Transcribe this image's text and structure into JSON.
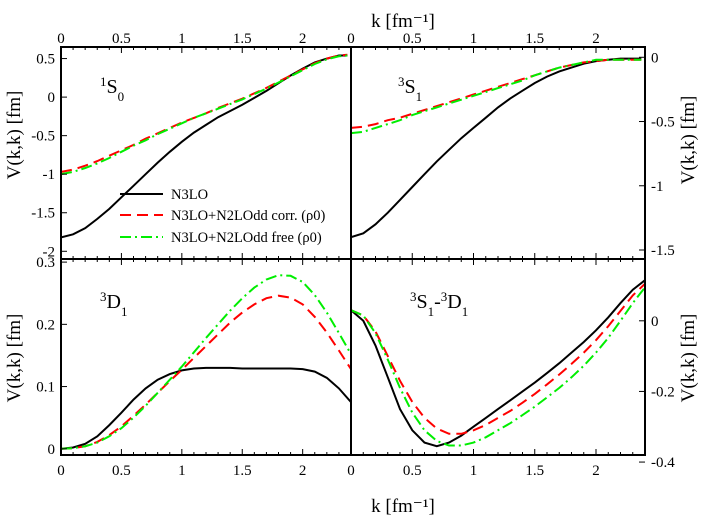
{
  "figure": {
    "xlabel_bottom": "k [fm⁻¹]",
    "xlabel_top": "k [fm⁻¹]",
    "ylabel_left_top": "V(k,k) [fm]",
    "ylabel_left_bottom": "V(k,k) [fm]",
    "ylabel_right_top": "V(k,k) [fm]",
    "ylabel_right_bottom": "V(k,k) [fm]",
    "legend": [
      "N3LO",
      "N3LO+N2LOdd corr. (ρ0)",
      "N3LO+N2LOdd free (ρ0)"
    ]
  },
  "colors": {
    "n3lo": "#000000",
    "corr": "#ff0000",
    "free": "#00ee00",
    "axis": "#000000"
  },
  "chart_data": [
    {
      "type": "line",
      "panel": "1S0",
      "label": "1S0",
      "xlim": [
        0,
        2.4
      ],
      "ylim": [
        -2.1,
        0.65
      ],
      "xticks": [
        0,
        0.5,
        1,
        1.5,
        2
      ],
      "yticks": [
        -2,
        -1.5,
        -1,
        -0.5,
        0,
        0.5
      ],
      "series": [
        {
          "name": "N3LO",
          "x": [
            0,
            0.1,
            0.2,
            0.3,
            0.4,
            0.5,
            0.6,
            0.7,
            0.8,
            0.9,
            1.0,
            1.1,
            1.2,
            1.3,
            1.4,
            1.5,
            1.6,
            1.7,
            1.8,
            1.9,
            2.0,
            2.1,
            2.2,
            2.3,
            2.37
          ],
          "y": [
            -1.82,
            -1.78,
            -1.7,
            -1.58,
            -1.45,
            -1.3,
            -1.15,
            -1.0,
            -0.85,
            -0.71,
            -0.58,
            -0.46,
            -0.36,
            -0.26,
            -0.18,
            -0.1,
            -0.01,
            0.08,
            0.18,
            0.28,
            0.37,
            0.45,
            0.5,
            0.54,
            0.54
          ]
        },
        {
          "name": "N3LO+N2LOdd corr. (ρ0)",
          "x": [
            0,
            0.1,
            0.2,
            0.3,
            0.4,
            0.5,
            0.6,
            0.7,
            0.8,
            0.9,
            1.0,
            1.1,
            1.2,
            1.3,
            1.4,
            1.5,
            1.6,
            1.7,
            1.8,
            1.9,
            2.0,
            2.1,
            2.2,
            2.3,
            2.37
          ],
          "y": [
            -0.97,
            -0.94,
            -0.89,
            -0.83,
            -0.76,
            -0.69,
            -0.62,
            -0.54,
            -0.47,
            -0.4,
            -0.33,
            -0.27,
            -0.21,
            -0.14,
            -0.08,
            -0.02,
            0.05,
            0.12,
            0.2,
            0.28,
            0.36,
            0.44,
            0.5,
            0.54,
            0.55
          ]
        },
        {
          "name": "N3LO+N2LOdd free (ρ0)",
          "x": [
            0,
            0.1,
            0.2,
            0.3,
            0.4,
            0.5,
            0.6,
            0.7,
            0.8,
            0.9,
            1.0,
            1.1,
            1.2,
            1.3,
            1.4,
            1.5,
            1.6,
            1.7,
            1.8,
            1.9,
            2.0,
            2.1,
            2.2,
            2.3,
            2.37
          ],
          "y": [
            -1.0,
            -0.97,
            -0.92,
            -0.86,
            -0.79,
            -0.71,
            -0.63,
            -0.56,
            -0.48,
            -0.41,
            -0.34,
            -0.27,
            -0.21,
            -0.15,
            -0.09,
            -0.03,
            0.04,
            0.11,
            0.19,
            0.27,
            0.35,
            0.43,
            0.49,
            0.53,
            0.54
          ]
        }
      ]
    },
    {
      "type": "line",
      "panel": "3S1",
      "label": "3S1",
      "xlim": [
        0,
        2.4
      ],
      "ylim": [
        -1.57,
        0.08
      ],
      "xticks": [
        0,
        0.5,
        1,
        1.5,
        2
      ],
      "yticks": [
        -1.5,
        -1,
        -0.5,
        0
      ],
      "series": [
        {
          "name": "N3LO",
          "x": [
            0,
            0.1,
            0.2,
            0.3,
            0.4,
            0.5,
            0.6,
            0.7,
            0.8,
            0.9,
            1.0,
            1.1,
            1.2,
            1.3,
            1.4,
            1.5,
            1.6,
            1.7,
            1.8,
            1.9,
            2.0,
            2.1,
            2.2,
            2.3,
            2.37
          ],
          "y": [
            -1.4,
            -1.37,
            -1.3,
            -1.21,
            -1.11,
            -1.01,
            -0.91,
            -0.81,
            -0.72,
            -0.63,
            -0.55,
            -0.47,
            -0.39,
            -0.32,
            -0.26,
            -0.2,
            -0.15,
            -0.11,
            -0.08,
            -0.05,
            -0.03,
            -0.02,
            -0.01,
            -0.01,
            -0.01
          ]
        },
        {
          "name": "N3LO+N2LOdd corr. (ρ0)",
          "x": [
            0,
            0.1,
            0.2,
            0.3,
            0.4,
            0.5,
            0.6,
            0.7,
            0.8,
            0.9,
            1.0,
            1.1,
            1.2,
            1.3,
            1.4,
            1.5,
            1.6,
            1.7,
            1.8,
            1.9,
            2.0,
            2.1,
            2.2,
            2.3,
            2.37
          ],
          "y": [
            -0.55,
            -0.54,
            -0.52,
            -0.49,
            -0.47,
            -0.44,
            -0.41,
            -0.38,
            -0.35,
            -0.32,
            -0.29,
            -0.26,
            -0.23,
            -0.2,
            -0.17,
            -0.14,
            -0.11,
            -0.08,
            -0.06,
            -0.04,
            -0.03,
            -0.02,
            -0.02,
            -0.02,
            -0.02
          ]
        },
        {
          "name": "N3LO+N2LOdd free (ρ0)",
          "x": [
            0,
            0.1,
            0.2,
            0.3,
            0.4,
            0.5,
            0.6,
            0.7,
            0.8,
            0.9,
            1.0,
            1.1,
            1.2,
            1.3,
            1.4,
            1.5,
            1.6,
            1.7,
            1.8,
            1.9,
            2.0,
            2.1,
            2.2,
            2.3,
            2.37
          ],
          "y": [
            -0.59,
            -0.58,
            -0.55,
            -0.52,
            -0.49,
            -0.45,
            -0.42,
            -0.39,
            -0.36,
            -0.33,
            -0.3,
            -0.27,
            -0.24,
            -0.21,
            -0.18,
            -0.14,
            -0.11,
            -0.08,
            -0.06,
            -0.04,
            -0.02,
            -0.02,
            -0.02,
            -0.02,
            -0.02
          ]
        }
      ]
    },
    {
      "type": "line",
      "panel": "3D1",
      "label": "3D1",
      "xlim": [
        0,
        2.4
      ],
      "ylim": [
        -0.01,
        0.305
      ],
      "xticks": [
        0,
        0.5,
        1,
        1.5,
        2
      ],
      "yticks": [
        0,
        0.1,
        0.2,
        0.3
      ],
      "series": [
        {
          "name": "N3LO",
          "x": [
            0,
            0.1,
            0.2,
            0.3,
            0.4,
            0.5,
            0.6,
            0.7,
            0.8,
            0.9,
            1.0,
            1.1,
            1.2,
            1.3,
            1.4,
            1.5,
            1.6,
            1.7,
            1.8,
            1.9,
            2.0,
            2.1,
            2.2,
            2.3,
            2.4
          ],
          "y": [
            0,
            0.002,
            0.008,
            0.02,
            0.038,
            0.058,
            0.079,
            0.097,
            0.111,
            0.12,
            0.126,
            0.129,
            0.13,
            0.13,
            0.13,
            0.129,
            0.129,
            0.129,
            0.129,
            0.129,
            0.128,
            0.124,
            0.114,
            0.097,
            0.075
          ]
        },
        {
          "name": "N3LO+N2LOdd corr. (ρ0)",
          "x": [
            0,
            0.1,
            0.2,
            0.3,
            0.4,
            0.5,
            0.6,
            0.7,
            0.8,
            0.9,
            1.0,
            1.1,
            1.2,
            1.3,
            1.4,
            1.5,
            1.6,
            1.7,
            1.8,
            1.9,
            2.0,
            2.1,
            2.2,
            2.3,
            2.4
          ],
          "y": [
            0,
            0.001,
            0.004,
            0.011,
            0.022,
            0.036,
            0.053,
            0.071,
            0.09,
            0.109,
            0.127,
            0.146,
            0.165,
            0.184,
            0.203,
            0.219,
            0.232,
            0.242,
            0.246,
            0.243,
            0.232,
            0.212,
            0.187,
            0.158,
            0.128
          ]
        },
        {
          "name": "N3LO+N2LOdd free (ρ0)",
          "x": [
            0,
            0.1,
            0.2,
            0.3,
            0.4,
            0.5,
            0.6,
            0.7,
            0.8,
            0.9,
            1.0,
            1.1,
            1.2,
            1.3,
            1.4,
            1.5,
            1.6,
            1.7,
            1.8,
            1.9,
            2.0,
            2.1,
            2.2,
            2.3,
            2.4
          ],
          "y": [
            0,
            0.001,
            0.004,
            0.01,
            0.02,
            0.033,
            0.05,
            0.069,
            0.09,
            0.111,
            0.132,
            0.155,
            0.178,
            0.2,
            0.222,
            0.242,
            0.259,
            0.272,
            0.279,
            0.278,
            0.268,
            0.247,
            0.219,
            0.186,
            0.152
          ]
        }
      ]
    },
    {
      "type": "line",
      "panel": "3S1-3D1",
      "label": "3S1-3D1",
      "xlim": [
        0,
        2.4
      ],
      "ylim": [
        -0.38,
        0.175
      ],
      "xticks": [
        0,
        0.5,
        1,
        1.5,
        2
      ],
      "yticks": [
        -0.4,
        -0.2,
        0
      ],
      "series": [
        {
          "name": "N3LO",
          "x": [
            0,
            0.1,
            0.2,
            0.3,
            0.4,
            0.5,
            0.6,
            0.7,
            0.8,
            0.9,
            1.0,
            1.1,
            1.2,
            1.3,
            1.4,
            1.5,
            1.6,
            1.7,
            1.8,
            1.9,
            2.0,
            2.1,
            2.2,
            2.3,
            2.4
          ],
          "y": [
            0.03,
            0.0,
            -0.07,
            -0.16,
            -0.25,
            -0.31,
            -0.345,
            -0.355,
            -0.345,
            -0.325,
            -0.3,
            -0.275,
            -0.25,
            -0.225,
            -0.2,
            -0.175,
            -0.148,
            -0.12,
            -0.09,
            -0.06,
            -0.027,
            0.01,
            0.05,
            0.088,
            0.115
          ]
        },
        {
          "name": "N3LO+N2LOdd corr. (ρ0)",
          "x": [
            0,
            0.1,
            0.2,
            0.3,
            0.4,
            0.5,
            0.6,
            0.7,
            0.8,
            0.9,
            1.0,
            1.1,
            1.2,
            1.3,
            1.4,
            1.5,
            1.6,
            1.7,
            1.8,
            1.9,
            2.0,
            2.1,
            2.2,
            2.3,
            2.4
          ],
          "y": [
            0.03,
            0.015,
            -0.03,
            -0.1,
            -0.17,
            -0.23,
            -0.275,
            -0.305,
            -0.32,
            -0.32,
            -0.31,
            -0.295,
            -0.275,
            -0.255,
            -0.232,
            -0.207,
            -0.18,
            -0.152,
            -0.122,
            -0.09,
            -0.055,
            -0.015,
            0.028,
            0.072,
            0.105
          ]
        },
        {
          "name": "N3LO+N2LOdd free (ρ0)",
          "x": [
            0,
            0.1,
            0.2,
            0.3,
            0.4,
            0.5,
            0.6,
            0.7,
            0.8,
            0.9,
            1.0,
            1.1,
            1.2,
            1.3,
            1.4,
            1.5,
            1.6,
            1.7,
            1.8,
            1.9,
            2.0,
            2.1,
            2.2,
            2.3,
            2.4
          ],
          "y": [
            0.03,
            0.015,
            -0.035,
            -0.11,
            -0.19,
            -0.26,
            -0.31,
            -0.34,
            -0.353,
            -0.353,
            -0.345,
            -0.33,
            -0.31,
            -0.29,
            -0.267,
            -0.243,
            -0.217,
            -0.19,
            -0.16,
            -0.127,
            -0.09,
            -0.048,
            0.0,
            0.05,
            0.095
          ]
        }
      ]
    }
  ]
}
